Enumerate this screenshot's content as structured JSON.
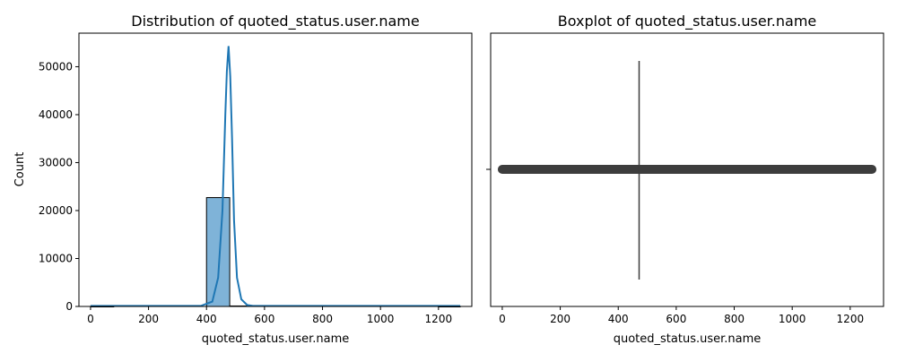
{
  "chart_data": [
    {
      "type": "histogram",
      "title": "Distribution of quoted_status.user.name",
      "xlabel": "quoted_status.user.name",
      "ylabel": "Count",
      "xlim": [
        -40,
        1315
      ],
      "ylim": [
        0,
        57000
      ],
      "xticks": [
        0,
        200,
        400,
        600,
        800,
        1000,
        1200
      ],
      "xtick_labels": [
        "0",
        "200",
        "400",
        "600",
        "800",
        "1000",
        "1200"
      ],
      "yticks": [
        0,
        10000,
        20000,
        30000,
        40000,
        50000
      ],
      "ytick_labels": [
        "0",
        "10000",
        "20000",
        "30000",
        "40000",
        "50000"
      ],
      "bins": [
        {
          "x0": 0,
          "x1": 80,
          "count": 0
        },
        {
          "x0": 400,
          "x1": 480,
          "count": 22700
        },
        {
          "x0": 480,
          "x1": 560,
          "count": 100
        },
        {
          "x0": 1200,
          "x1": 1275,
          "count": 0
        }
      ],
      "bar_color": "#7fb3d8",
      "kde_color": "#1f77b4",
      "kde": [
        {
          "x": 0,
          "y": 120
        },
        {
          "x": 200,
          "y": 120
        },
        {
          "x": 380,
          "y": 120
        },
        {
          "x": 420,
          "y": 1000
        },
        {
          "x": 440,
          "y": 6000
        },
        {
          "x": 455,
          "y": 20000
        },
        {
          "x": 465,
          "y": 40000
        },
        {
          "x": 470,
          "y": 49000
        },
        {
          "x": 476,
          "y": 54300
        },
        {
          "x": 482,
          "y": 48000
        },
        {
          "x": 488,
          "y": 35000
        },
        {
          "x": 495,
          "y": 18000
        },
        {
          "x": 505,
          "y": 6000
        },
        {
          "x": 520,
          "y": 1500
        },
        {
          "x": 540,
          "y": 300
        },
        {
          "x": 560,
          "y": 120
        },
        {
          "x": 800,
          "y": 120
        },
        {
          "x": 1275,
          "y": 120
        }
      ]
    },
    {
      "type": "boxplot",
      "title": "Boxplot of quoted_status.user.name",
      "xlabel": "quoted_status.user.name",
      "xlim": [
        -40,
        1315
      ],
      "xticks": [
        0,
        200,
        400,
        600,
        800,
        1000,
        1200
      ],
      "xtick_labels": [
        "0",
        "200",
        "400",
        "600",
        "800",
        "1000",
        "1200"
      ],
      "median": 472,
      "q1": 472,
      "q3": 472,
      "whisker_low": 472,
      "whisker_high": 472,
      "outliers_range": [
        0,
        1275
      ],
      "color": "#3d3d3d"
    }
  ]
}
